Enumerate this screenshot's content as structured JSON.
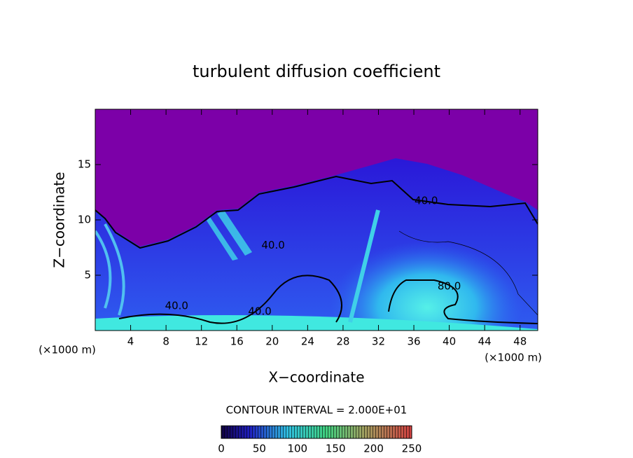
{
  "chart_data": {
    "type": "contour",
    "title": "turbulent diffusion coefficient",
    "xlabel": "X−coordinate",
    "ylabel": "Z−coordinate",
    "x_unit_left": "(×1000 m)",
    "x_unit_right": "(×1000 m)",
    "contour_interval": "CONTOUR INTERVAL = 2.000E+01",
    "xlim": [
      0,
      50
    ],
    "xticks": [
      4,
      8,
      12,
      16,
      20,
      24,
      28,
      32,
      36,
      40,
      44,
      48
    ],
    "ylim": [
      0,
      20
    ],
    "yticks": [
      5,
      10,
      15
    ],
    "clim": [
      0,
      250
    ],
    "cticks": [
      0,
      50,
      100,
      150,
      200,
      250
    ],
    "annotations": [
      {
        "text": "40.0",
        "x": 37.4,
        "y": 11.7
      },
      {
        "text": "40.0",
        "x": 20.1,
        "y": 7.7
      },
      {
        "text": "80.0",
        "x": 40.0,
        "y": 4.0
      },
      {
        "text": "40.0",
        "x": 9.2,
        "y": 2.2
      },
      {
        "text": "40.0",
        "x": 18.6,
        "y": 1.7
      }
    ]
  }
}
